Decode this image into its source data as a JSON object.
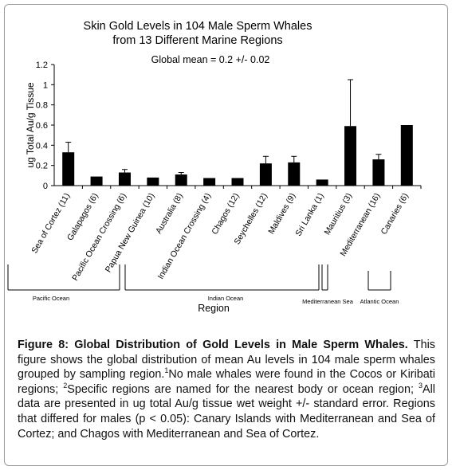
{
  "chart_data": {
    "type": "bar",
    "title_lines": [
      "Skin Gold Levels in 104 Male Sperm Whales",
      "from 13 Different Marine Regions"
    ],
    "annotation": "Global mean = 0.2 +/- 0.02",
    "xlabel": "Region",
    "ylabel": "ug Total Au/g Tissue",
    "ylim": [
      0,
      1.2
    ],
    "yticks": [
      "0",
      "0.2",
      "0.4",
      "0.6",
      "0.8",
      "1",
      "1.2"
    ],
    "categories": [
      "Sea of Cortez (11)",
      "Galapagos (6)",
      "Pacific Ocean Crossing (6)",
      "Papua New Guinea (10)",
      "Australia (8)",
      "Indian Ocean Crossing (4)",
      "Chagos (12)",
      "Seychelles (12)",
      "Maldives (9)",
      "Sri Lanka (1)",
      "Mauritius (3)",
      "Mediterranean (16)",
      "Canaries (6)"
    ],
    "values": [
      0.33,
      0.09,
      0.13,
      0.08,
      0.11,
      0.075,
      0.075,
      0.22,
      0.23,
      0.06,
      0.59,
      0.26,
      0.6
    ],
    "errors": [
      0.1,
      0,
      0.03,
      0,
      0.02,
      0,
      0,
      0.07,
      0.06,
      0,
      0.46,
      0.05,
      0
    ],
    "groups": [
      "Pacific Ocean",
      "Indian Ocean",
      "Mediterranean Sea",
      "Atlantic Ocean"
    ],
    "bar_color": "#000000",
    "grid": false,
    "legend": "none"
  },
  "caption": {
    "bold": "Figure 8: Global Distribution of Gold Levels in Male Sperm Whales.",
    "part1": " This figure shows the global distribution of mean Au levels in 104 male sperm whales grouped by sampling region.",
    "sup1": "1",
    "part2": "No male whales were found in the Cocos or Kiribati regions; ",
    "sup2": "2",
    "part3": "Specific regions are named for the nearest body or ocean region; ",
    "sup3": "3",
    "part4": "All data are presented in ug total Au/g tissue wet weight +/- standard error. Regions that differed for males (p < 0.05): Canary Islands with Mediterranean and Sea of Cortez; and Chagos with Mediterranean and Sea of Cortez."
  }
}
